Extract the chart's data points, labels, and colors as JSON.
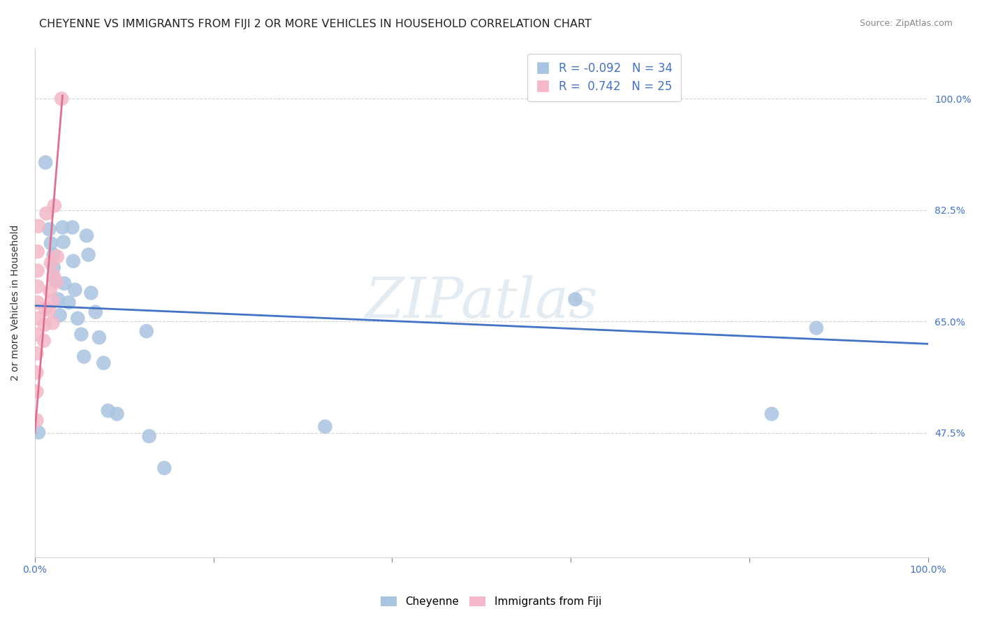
{
  "title": "CHEYENNE VS IMMIGRANTS FROM FIJI 2 OR MORE VEHICLES IN HOUSEHOLD CORRELATION CHART",
  "source": "Source: ZipAtlas.com",
  "ylabel": "2 or more Vehicles in Household",
  "xlim": [
    0.0,
    1.0
  ],
  "ylim": [
    0.28,
    1.08
  ],
  "xticks": [
    0.0,
    0.2,
    0.4,
    0.6,
    0.8,
    1.0
  ],
  "xticklabels": [
    "0.0%",
    "",
    "",
    "",
    "",
    "100.0%"
  ],
  "ytick_positions": [
    0.475,
    0.65,
    0.825,
    1.0
  ],
  "ytick_labels": [
    "47.5%",
    "65.0%",
    "82.5%",
    "100.0%"
  ],
  "watermark": "ZIPatlas",
  "cheyenne_color": "#a8c4e0",
  "fiji_color": "#f4b8c8",
  "cheyenne_line_color": "#4472C4",
  "fiji_line_color": "#E07090",
  "legend_label1": "R = -0.092   N = 34",
  "legend_label2": "R =  0.742   N = 25",
  "cheyenne_points_x": [
    0.004,
    0.012,
    0.016,
    0.018,
    0.021,
    0.021,
    0.023,
    0.026,
    0.028,
    0.031,
    0.032,
    0.033,
    0.038,
    0.042,
    0.043,
    0.045,
    0.048,
    0.052,
    0.055,
    0.058,
    0.06,
    0.063,
    0.068,
    0.072,
    0.077,
    0.082,
    0.092,
    0.125,
    0.128,
    0.145,
    0.325,
    0.605,
    0.825,
    0.875
  ],
  "cheyenne_points_y": [
    0.476,
    0.9,
    0.795,
    0.773,
    0.755,
    0.735,
    0.715,
    0.685,
    0.66,
    0.798,
    0.775,
    0.71,
    0.68,
    0.798,
    0.745,
    0.7,
    0.655,
    0.63,
    0.595,
    0.785,
    0.755,
    0.695,
    0.665,
    0.625,
    0.585,
    0.51,
    0.505,
    0.635,
    0.47,
    0.42,
    0.485,
    0.685,
    0.505,
    0.64
  ],
  "fiji_points_x": [
    0.002,
    0.002,
    0.002,
    0.002,
    0.002,
    0.003,
    0.003,
    0.003,
    0.003,
    0.003,
    0.004,
    0.01,
    0.011,
    0.012,
    0.013,
    0.016,
    0.017,
    0.018,
    0.02,
    0.02,
    0.021,
    0.022,
    0.024,
    0.025,
    0.03
  ],
  "fiji_points_y": [
    0.495,
    0.54,
    0.57,
    0.6,
    0.63,
    0.655,
    0.68,
    0.705,
    0.73,
    0.76,
    0.8,
    0.62,
    0.645,
    0.67,
    0.82,
    0.668,
    0.698,
    0.742,
    0.648,
    0.682,
    0.722,
    0.832,
    0.712,
    0.752,
    1.0
  ],
  "blue_line_x": [
    0.0,
    1.0
  ],
  "blue_line_y": [
    0.675,
    0.615
  ],
  "pink_line_x": [
    0.0,
    0.031
  ],
  "pink_line_y": [
    0.475,
    1.005
  ],
  "title_fontsize": 11.5,
  "axis_label_fontsize": 10,
  "tick_fontsize": 10,
  "source_fontsize": 9
}
